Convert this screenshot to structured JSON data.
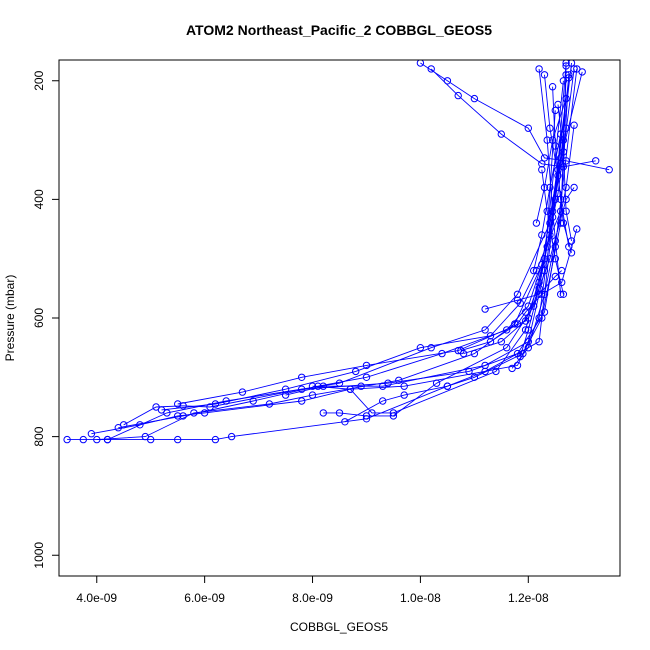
{
  "chart_data": {
    "type": "line",
    "title": "ATOM2 Northeast_Pacific_2 COBBGL_GEOS5",
    "xlabel": "COBBGL_GEOS5",
    "ylabel": "Pressure (mbar)",
    "xlim": [
      3.3e-09,
      1.37e-08
    ],
    "ylim": [
      1035,
      165
    ],
    "y_inverted": true,
    "grid": false,
    "x_ticks": [
      {
        "value": 4e-09,
        "label": "4.0e-09"
      },
      {
        "value": 6e-09,
        "label": "6.0e-09"
      },
      {
        "value": 8e-09,
        "label": "8.0e-09"
      },
      {
        "value": 1e-08,
        "label": "1.0e-08"
      },
      {
        "value": 1.2e-08,
        "label": "1.2e-08"
      }
    ],
    "y_ticks": [
      {
        "value": 200,
        "label": "200"
      },
      {
        "value": 400,
        "label": "400"
      },
      {
        "value": 600,
        "label": "600"
      },
      {
        "value": 800,
        "label": "800"
      },
      {
        "value": 1000,
        "label": "1000"
      }
    ],
    "series_color": "#0000ff",
    "marker": "open-circle",
    "series": [
      {
        "x": [
          3.45e-09,
          3.75e-09,
          4.2e-09,
          5e-09,
          5.5e-09,
          6.2e-09,
          6.5e-09,
          9e-09,
          1.05e-08,
          1.12e-08,
          1.22e-08,
          1.25e-08,
          1.27e-08
        ],
        "y": [
          805,
          805,
          805,
          805,
          805,
          805,
          800,
          770,
          715,
          690,
          640,
          400,
          170
        ]
      },
      {
        "x": [
          3.9e-09,
          4.8e-09,
          5.5e-09,
          6e-09,
          7.8e-09,
          8.7e-09,
          9.7e-09,
          1.18e-08,
          1.22e-08,
          1.26e-08,
          1.28e-08
        ],
        "y": [
          795,
          780,
          765,
          760,
          740,
          720,
          715,
          680,
          600,
          330,
          170
        ]
      },
      {
        "x": [
          4.5e-09,
          5.1e-09,
          5.6e-09,
          6.1e-09,
          7.8e-09,
          9.4e-09,
          1.09e-08,
          1.18e-08,
          1.23e-08,
          1.25e-08,
          1.29e-08
        ],
        "y": [
          780,
          750,
          748,
          750,
          720,
          710,
          690,
          660,
          590,
          480,
          180
        ]
      },
      {
        "x": [
          4.2e-09,
          5.3e-09,
          6.4e-09,
          8.5e-09,
          1.02e-08,
          1.12e-08,
          1.18e-08,
          1.24e-08,
          1.265e-08,
          1.27e-08
        ],
        "y": [
          805,
          760,
          740,
          710,
          650,
          620,
          560,
          440,
          300,
          175
        ]
      },
      {
        "x": [
          4.4e-09,
          5.6e-09,
          6.9e-09,
          8.1e-09,
          9e-09,
          1.04e-08,
          1.16e-08,
          1.2e-08,
          1.225e-08,
          1.255e-08,
          1.3e-08
        ],
        "y": [
          785,
          765,
          740,
          715,
          700,
          660,
          620,
          580,
          510,
          350,
          185
        ]
      },
      {
        "x": [
          5.2e-09,
          6.2e-09,
          7.5e-09,
          8.8e-09,
          1e-08,
          1.13e-08,
          1.185e-08,
          1.215e-08,
          1.26e-08,
          1.275e-08
        ],
        "y": [
          755,
          745,
          720,
          690,
          650,
          630,
          575,
          520,
          420,
          190
        ]
      },
      {
        "x": [
          4e-09,
          4.9e-09,
          5.8e-09,
          7.2e-09,
          8e-09,
          9.6e-09,
          1.1e-08,
          1.175e-08,
          1.23e-08,
          1.265e-08
        ],
        "y": [
          805,
          800,
          760,
          745,
          730,
          705,
          660,
          610,
          500,
          200
        ]
      },
      {
        "x": [
          5.5e-09,
          6.7e-09,
          7.8e-09,
          9e-09,
          1.07e-08,
          1.195e-08,
          1.22e-08,
          1.255e-08,
          1.285e-08
        ],
        "y": [
          745,
          725,
          700,
          680,
          655,
          605,
          540,
          390,
          180
        ]
      },
      {
        "x": [
          8.2e-09,
          8.5e-09,
          9e-09,
          9.5e-09,
          1.03e-08,
          1.16e-08,
          1.21e-08,
          1.24e-08,
          1.275e-08
        ],
        "y": [
          760,
          760,
          765,
          765,
          710,
          650,
          580,
          460,
          195
        ]
      },
      {
        "x": [
          8.6e-09,
          9.3e-09,
          9.7e-09,
          1.05e-08,
          1.1e-08,
          1.19e-08,
          1.225e-08,
          1.26e-08,
          1.27e-08
        ],
        "y": [
          775,
          740,
          730,
          715,
          700,
          660,
          600,
          440,
          190
        ]
      },
      {
        "x": [
          7.5e-09,
          8.2e-09,
          8.9e-09,
          9.3e-09,
          1.12e-08,
          1.2e-08,
          1.23e-08,
          1.25e-08
        ],
        "y": [
          730,
          715,
          715,
          715,
          680,
          640,
          520,
          250
        ]
      },
      {
        "x": [
          8e-09,
          8.7e-09,
          9.1e-09,
          9.5e-09,
          1.14e-08,
          1.195e-08,
          1.235e-08,
          1.27e-08
        ],
        "y": [
          715,
          720,
          760,
          760,
          690,
          620,
          480,
          230
        ]
      },
      {
        "x": [
          1e-08,
          1.05e-08,
          1.1e-08,
          1.2e-08,
          1.23e-08,
          1.27e-08,
          1.35e-08
        ],
        "y": [
          170,
          200,
          230,
          280,
          330,
          335,
          350
        ]
      },
      {
        "x": [
          1.02e-08,
          1.07e-08,
          1.15e-08,
          1.225e-08,
          1.265e-08,
          1.325e-08
        ],
        "y": [
          180,
          225,
          290,
          340,
          345,
          335
        ]
      },
      {
        "x": [
          1.075e-08,
          1.13e-08,
          1.18e-08,
          1.195e-08,
          1.225e-08,
          1.262e-08,
          1.29e-08
        ],
        "y": [
          655,
          640,
          610,
          590,
          560,
          540,
          450
        ]
      },
      {
        "x": [
          1.17e-08,
          1.2e-08,
          1.23e-08,
          1.25e-08,
          1.27e-08,
          1.285e-08
        ],
        "y": [
          685,
          650,
          560,
          470,
          380,
          275
        ]
      },
      {
        "x": [
          1.08e-08,
          1.15e-08,
          1.2e-08,
          1.24e-08,
          1.27e-08,
          1.285e-08
        ],
        "y": [
          660,
          640,
          600,
          500,
          400,
          380
        ]
      },
      {
        "x": [
          1.12e-08,
          1.18e-08,
          1.22e-08,
          1.25e-08,
          1.262e-08
        ],
        "y": [
          585,
          570,
          560,
          530,
          520
        ]
      },
      {
        "x": [
          1.185e-08,
          1.2e-08,
          1.22e-08,
          1.245e-08,
          1.27e-08
        ],
        "y": [
          665,
          620,
          550,
          430,
          280
        ]
      },
      {
        "x": [
          1.22e-08,
          1.235e-08,
          1.245e-08,
          1.26e-08
        ],
        "y": [
          180,
          300,
          420,
          560
        ]
      },
      {
        "x": [
          1.23e-08,
          1.24e-08,
          1.255e-08,
          1.265e-08,
          1.28e-08
        ],
        "y": [
          190,
          280,
          360,
          440,
          490
        ]
      },
      {
        "x": [
          1.245e-08,
          1.25e-08,
          1.26e-08,
          1.275e-08
        ],
        "y": [
          210,
          310,
          400,
          480
        ]
      },
      {
        "x": [
          1.255e-08,
          1.265e-08,
          1.27e-08,
          1.28e-08
        ],
        "y": [
          240,
          320,
          420,
          470
        ]
      },
      {
        "x": [
          1.225e-08,
          1.235e-08,
          1.25e-08,
          1.265e-08
        ],
        "y": [
          350,
          420,
          500,
          560
        ]
      },
      {
        "x": [
          1.215e-08,
          1.23e-08,
          1.245e-08,
          1.27e-08
        ],
        "y": [
          440,
          380,
          300,
          230
        ]
      },
      {
        "x": [
          1.21e-08,
          1.225e-08,
          1.24e-08,
          1.26e-08
        ],
        "y": [
          520,
          460,
          380,
          290
        ]
      }
    ]
  }
}
